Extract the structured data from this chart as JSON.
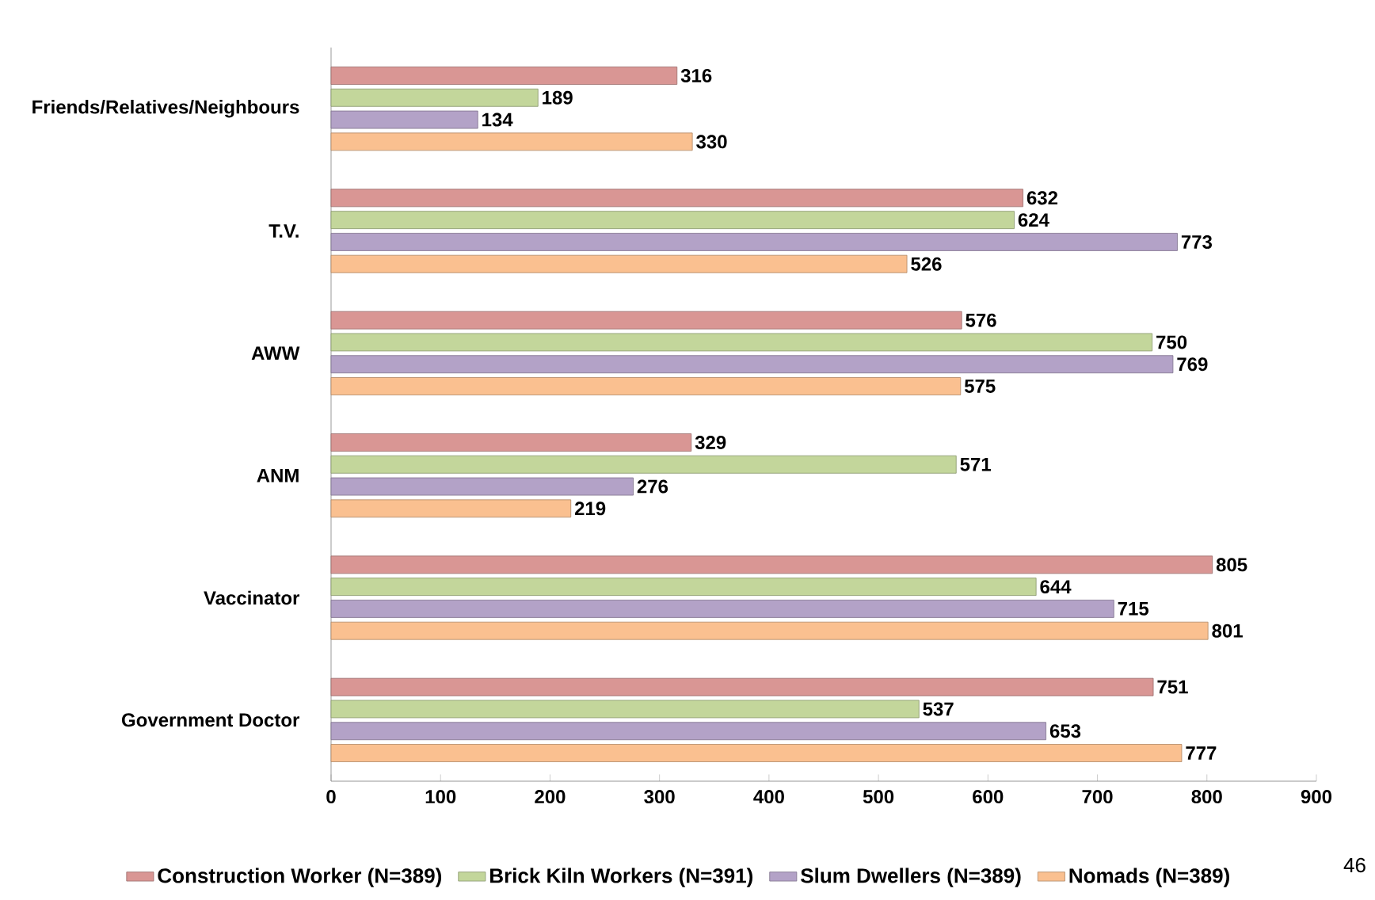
{
  "chart_data": {
    "type": "bar",
    "orientation": "horizontal",
    "data_labels": true,
    "legend": "bottom",
    "grid": false,
    "categories": [
      "Friends/Relatives/Neighbours",
      "T.V.",
      "AWW",
      "ANM",
      "Vaccinator",
      "Government Doctor"
    ],
    "series": [
      {
        "name": "Construction Worker (N=389)",
        "color": "#d99694",
        "values": [
          316,
          632,
          576,
          329,
          805,
          751
        ]
      },
      {
        "name": "Brick Kiln Workers (N=391)",
        "color": "#c3d69b",
        "values": [
          189,
          624,
          750,
          571,
          644,
          537
        ]
      },
      {
        "name": "Slum Dwellers (N=389)",
        "color": "#b3a2c7",
        "values": [
          134,
          773,
          769,
          276,
          715,
          653
        ]
      },
      {
        "name": "Nomads (N=389)",
        "color": "#fac090",
        "values": [
          330,
          526,
          575,
          219,
          801,
          777
        ]
      }
    ],
    "xlim": [
      0,
      900
    ],
    "xticks": [
      0,
      100,
      200,
      300,
      400,
      500,
      600,
      700,
      800,
      900
    ],
    "annotations": [
      "46"
    ]
  }
}
